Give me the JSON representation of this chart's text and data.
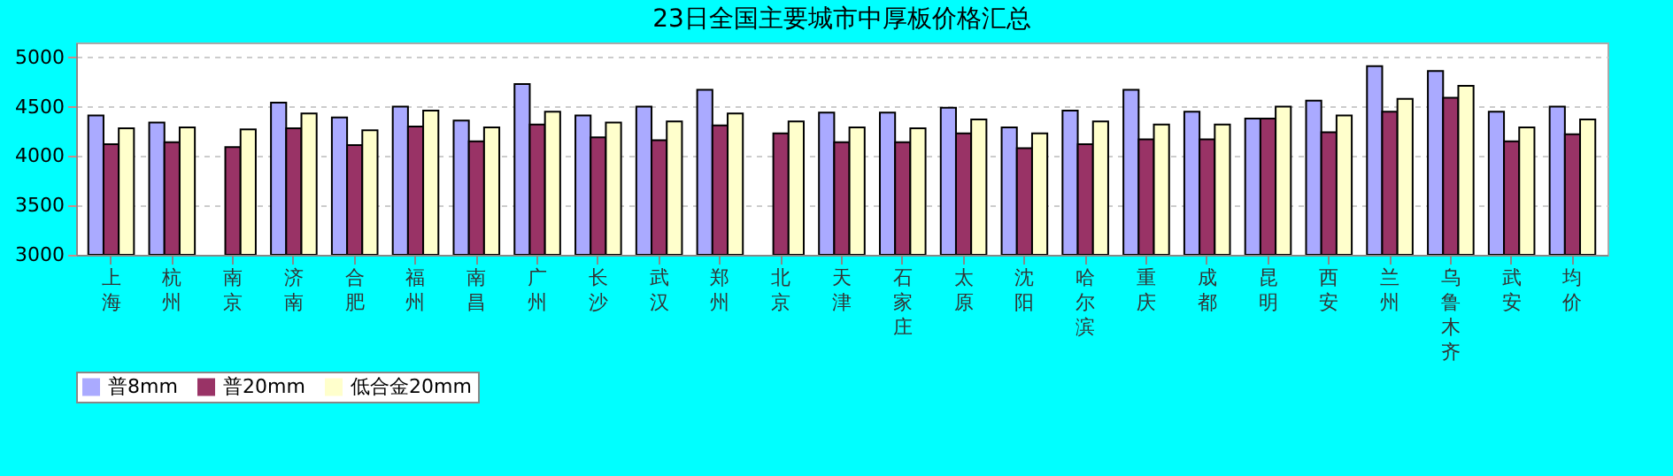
{
  "chart_data": {
    "type": "bar",
    "title": "23日全国主要城市中厚板价格汇总",
    "categories": [
      "上海",
      "杭州",
      "南京",
      "济南",
      "合肥",
      "福州",
      "南昌",
      "广州",
      "长沙",
      "武汉",
      "郑州",
      "北京",
      "天津",
      "石家庄",
      "太原",
      "沈阳",
      "哈尔滨",
      "重庆",
      "成都",
      "昆明",
      "西安",
      "兰州",
      "乌鲁木齐",
      "武安",
      "均价"
    ],
    "series": [
      {
        "name": "普8mm",
        "color": "#aaaaff",
        "values": [
          4410,
          4340,
          null,
          4540,
          4390,
          4500,
          4360,
          4730,
          4410,
          4500,
          4670,
          null,
          4440,
          4440,
          4490,
          4290,
          4460,
          4670,
          4450,
          4380,
          4560,
          4910,
          4860,
          4450,
          4500
        ]
      },
      {
        "name": "普20mm",
        "color": "#993366",
        "values": [
          4120,
          4140,
          4090,
          4280,
          4110,
          4300,
          4150,
          4320,
          4190,
          4160,
          4310,
          4230,
          4140,
          4140,
          4230,
          4080,
          4120,
          4170,
          4170,
          4380,
          4240,
          4450,
          4590,
          4150,
          4220
        ]
      },
      {
        "name": "低合金20mm",
        "color": "#ffffcc",
        "values": [
          4280,
          4290,
          4270,
          4430,
          4260,
          4460,
          4290,
          4450,
          4340,
          4350,
          4430,
          4350,
          4290,
          4280,
          4370,
          4230,
          4350,
          4320,
          4320,
          4500,
          4410,
          4580,
          4710,
          4290,
          4370
        ]
      }
    ],
    "ylim": [
      3000,
      5150
    ],
    "yticks": [
      3000,
      3500,
      4000,
      4500,
      5000
    ],
    "grid": "y",
    "legend": "bottom"
  }
}
